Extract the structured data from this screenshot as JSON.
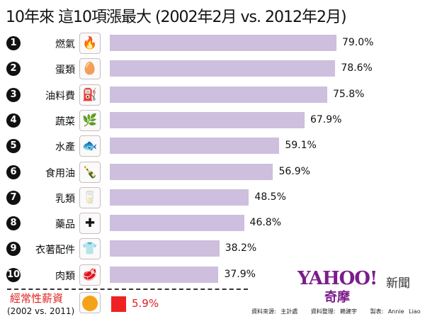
{
  "chart_data": {
    "type": "bar",
    "orientation": "horizontal",
    "title": "10年來 這10項漲最大 (2002年2月 vs. 2012年2月)",
    "categories": [
      "燃氣",
      "蛋類",
      "油料費",
      "蔬菜",
      "水產",
      "食用油",
      "乳類",
      "藥品",
      "衣著配件",
      "肉類"
    ],
    "ranks": [
      "1",
      "2",
      "3",
      "4",
      "5",
      "6",
      "7",
      "8",
      "9",
      "10"
    ],
    "values": [
      79.0,
      78.6,
      75.8,
      67.9,
      59.1,
      56.9,
      48.5,
      46.8,
      38.2,
      37.9
    ],
    "value_labels": [
      "79.0%",
      "78.6%",
      "75.8%",
      "67.9%",
      "59.1%",
      "56.9%",
      "48.5%",
      "46.8%",
      "38.2%",
      "37.9%"
    ],
    "icons": [
      "flame-icon",
      "egg-icon",
      "fuel-pump-icon",
      "vegetable-icon",
      "fish-icon",
      "oil-bottle-icon",
      "milk-carton-icon",
      "medicine-icon",
      "tshirt-icon",
      "meat-icon"
    ],
    "unit": "%",
    "bar_color": "#cdbfdd",
    "comparison": {
      "label": "經常性薪資",
      "sublabel": "(2002 vs. 2011)",
      "value": 5.9,
      "value_label": "5.9%",
      "color": "#ee2222",
      "icon": "smiley-icon"
    }
  },
  "branding": {
    "logo": "YAHOO!",
    "logo_sub": "奇摩",
    "news": "新聞"
  },
  "footer": {
    "source": "資料來源: 主計處",
    "compiled": "資料整理: 賴建宇",
    "made_by": "製表: Annie Liao"
  }
}
